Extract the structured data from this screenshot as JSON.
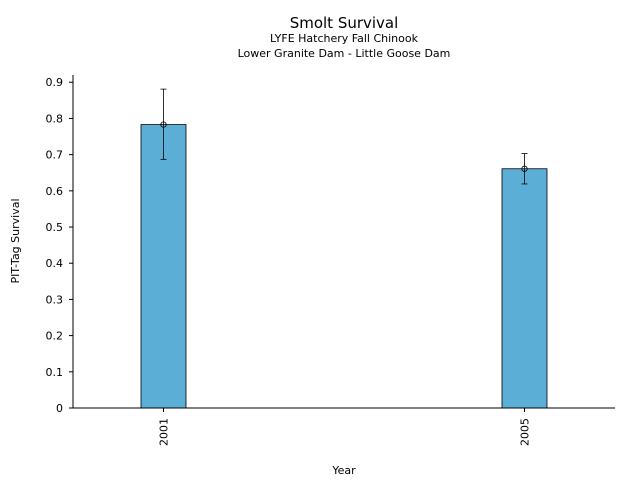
{
  "chart_data": {
    "type": "bar",
    "title": "Smolt Survival",
    "subtitle_lines": [
      "LYFE Hatchery Fall Chinook",
      "Lower Granite Dam - Little Goose Dam"
    ],
    "xlabel": "Year",
    "ylabel": "PIT-Tag Survival",
    "categories": [
      "2001",
      "2005"
    ],
    "values": [
      0.783,
      0.661
    ],
    "error_bars": [
      {
        "low": 0.687,
        "high": 0.881
      },
      {
        "low": 0.619,
        "high": 0.703
      }
    ],
    "ylim": [
      0,
      0.92
    ],
    "yticks": [
      0,
      0.1,
      0.2,
      0.3,
      0.4,
      0.5,
      0.6,
      0.7,
      0.8,
      0.9
    ],
    "ytick_labels": [
      "0",
      "0.1",
      "0.2",
      "0.3",
      "0.4",
      "0.5",
      "0.6",
      "0.7",
      "0.8",
      "0.9"
    ],
    "grid": false,
    "colors": {
      "bar": "#5bafd6",
      "bar_edge": "#000000",
      "axis": "#000000"
    }
  }
}
